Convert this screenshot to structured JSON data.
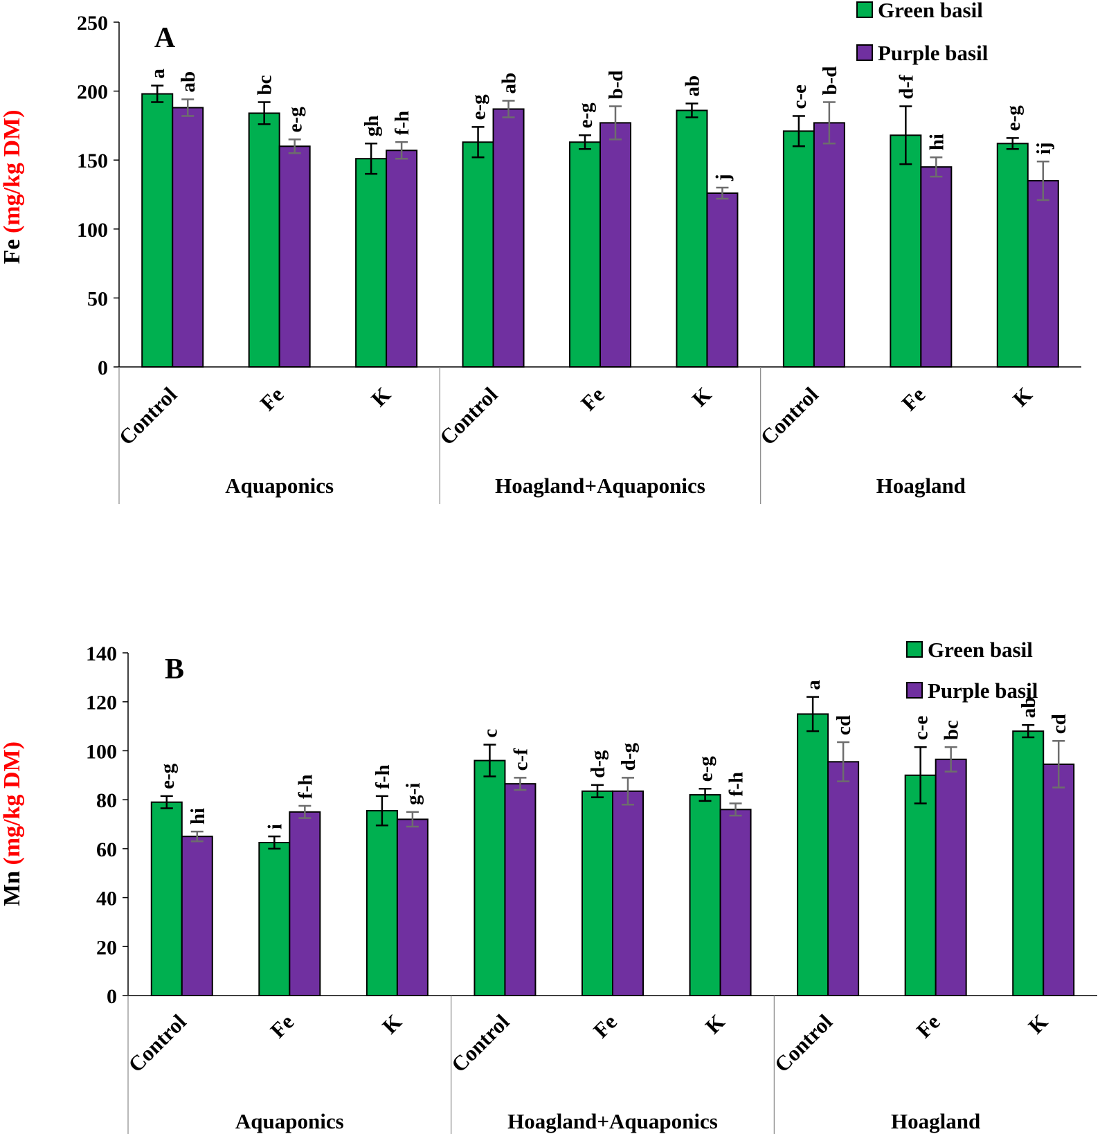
{
  "chart_data": [
    {
      "type": "bar",
      "panel_label": "A",
      "ylabel_prefix": "Fe",
      "ylabel_unit": "(mg/kg DM)",
      "ylim": [
        0,
        250
      ],
      "yticks": [
        0,
        50,
        100,
        150,
        200,
        250
      ],
      "tick_labels": [
        "0",
        "50",
        "100",
        "150",
        "200",
        "250"
      ],
      "groups": [
        "Aquaponics",
        "Hoagland+Aquaponics",
        "Hoagland"
      ],
      "categories": [
        "Control",
        "Fe",
        "K",
        "Control",
        "Fe",
        "K",
        "Control",
        "Fe",
        "K"
      ],
      "legend_position": "top-right",
      "series": [
        {
          "name": "Green basil",
          "color": "#00b050",
          "values": [
            198,
            184,
            151,
            163,
            163,
            186,
            171,
            168,
            162
          ],
          "errors": [
            6,
            8,
            11,
            11,
            5,
            5,
            11,
            21,
            4
          ],
          "letters": [
            "a",
            "bc",
            "gh",
            "e-g",
            "e-g",
            "ab",
            "c-e",
            "d-f",
            "e-g"
          ]
        },
        {
          "name": "Purple basil",
          "color": "#7030a0",
          "values": [
            188,
            160,
            157,
            187,
            177,
            126,
            177,
            145,
            135
          ],
          "errors": [
            6,
            5,
            6,
            6,
            12,
            4,
            15,
            7,
            14
          ],
          "letters": [
            "ab",
            "e-g",
            "f-h",
            "ab",
            "b-d",
            "j",
            "b-d",
            "hi",
            "ij"
          ]
        }
      ]
    },
    {
      "type": "bar",
      "panel_label": "B",
      "ylabel_prefix": "Mn",
      "ylabel_unit": "(mg/kg DM)",
      "ylim": [
        0,
        140
      ],
      "yticks": [
        0,
        20,
        40,
        60,
        80,
        100,
        120,
        140
      ],
      "tick_labels": [
        "0",
        "20",
        "40",
        "60",
        "80",
        "100",
        "120",
        "140"
      ],
      "groups": [
        "Aquaponics",
        "Hoagland+Aquaponics",
        "Hoagland"
      ],
      "categories": [
        "Control",
        "Fe",
        "K",
        "Control",
        "Fe",
        "K",
        "Control",
        "Fe",
        "K"
      ],
      "legend_position": "top-right",
      "series": [
        {
          "name": "Green basil",
          "color": "#00b050",
          "values": [
            79,
            62.5,
            75.5,
            96,
            83.5,
            82,
            115,
            90,
            108
          ],
          "errors": [
            2.5,
            2.5,
            6,
            6.5,
            2.5,
            2.5,
            7,
            11.5,
            2.5
          ],
          "letters": [
            "e-g",
            "i",
            "f-h",
            "c",
            "d-g",
            "e-g",
            "a",
            "c-e",
            "ab"
          ]
        },
        {
          "name": "Purple basil",
          "color": "#7030a0",
          "values": [
            65,
            75,
            72,
            86.5,
            83.5,
            76,
            95.5,
            96.5,
            94.5
          ],
          "errors": [
            2,
            2.5,
            3,
            2.5,
            5.5,
            2.5,
            8,
            5,
            9.5
          ],
          "letters": [
            "hi",
            "f-h",
            "g-i",
            "c-f",
            "d-g",
            "f-h",
            "cd",
            "bc",
            "cd"
          ]
        }
      ]
    }
  ]
}
